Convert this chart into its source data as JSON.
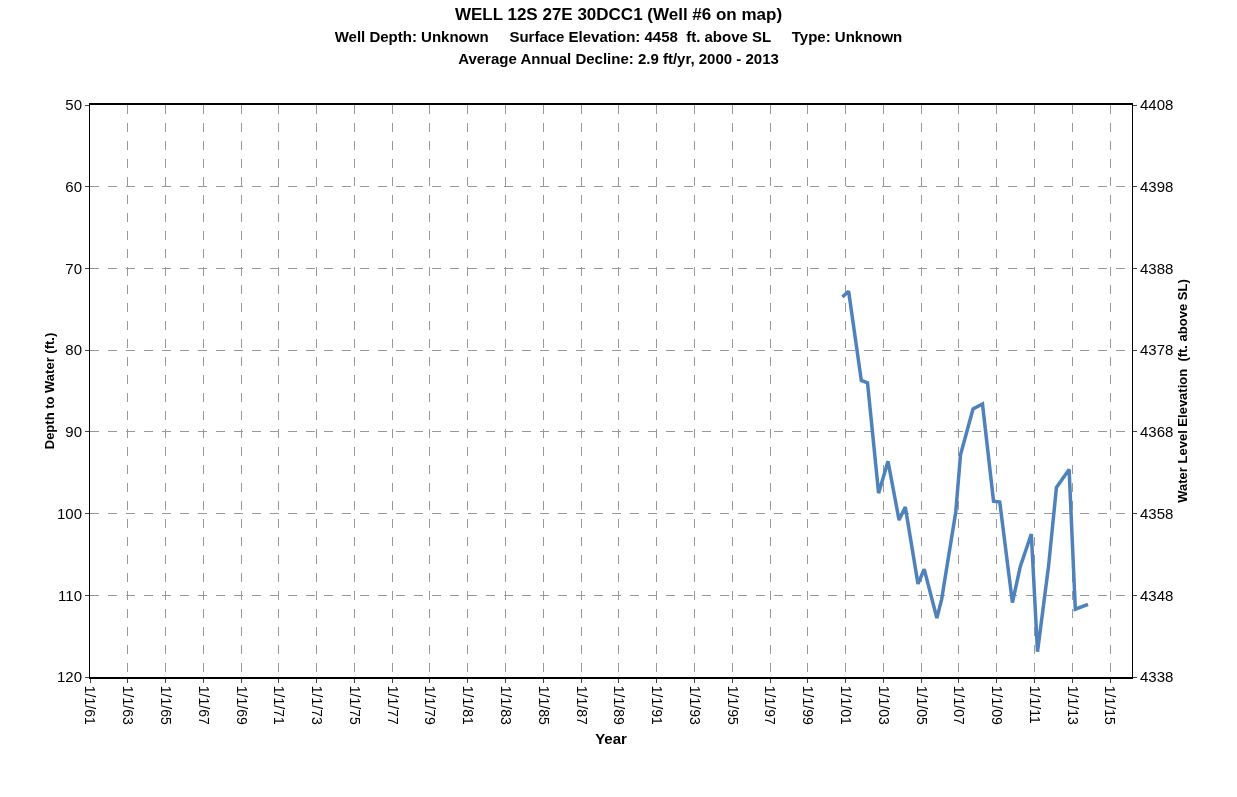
{
  "chart_data": {
    "type": "line",
    "title": "WELL 12S 27E 30DCC1 (Well #6 on map)",
    "subtitle": "Well Depth: Unknown     Surface Elevation: 4458  ft. above SL     Type: Unknown\nAverage Annual Decline: 2.9 ft/yr, 2000 - 2013",
    "xlabel": "Year",
    "ylabel": "Depth to Water (ft.)",
    "y2label": "Water Level Elevation  (ft. above SL)",
    "x": [
      "2000-11",
      "2001-03",
      "2001-11",
      "2002-03",
      "2002-10",
      "2003-04",
      "2003-11",
      "2004-03",
      "2004-11",
      "2005-03",
      "2005-11",
      "2006-02",
      "2006-11",
      "2007-02",
      "2007-10",
      "2008-04",
      "2008-11",
      "2009-03",
      "2009-11",
      "2010-04",
      "2010-11",
      "2011-03",
      "2011-10",
      "2012-03",
      "2012-11",
      "2013-03",
      "2013-11"
    ],
    "series": [
      {
        "color": "#4f81bd",
        "values": [
          73.5,
          72.8,
          83.7,
          84,
          97.5,
          93.6,
          100.8,
          99.2,
          108.6,
          106.8,
          112.8,
          110.5,
          99.8,
          92.8,
          87.2,
          86.6,
          98.5,
          98.6,
          110.9,
          106.5,
          102.5,
          116.9,
          106.4,
          96.8,
          94.6,
          111.7,
          111.1
        ]
      }
    ],
    "xlim": [
      "1961-01-01",
      "2016-03-01"
    ],
    "xticks": [
      {
        "value": "1961-01-01",
        "label": "1/1/61"
      },
      {
        "value": "1963-01-01",
        "label": "1/1/63"
      },
      {
        "value": "1965-01-01",
        "label": "1/1/65"
      },
      {
        "value": "1967-01-01",
        "label": "1/1/67"
      },
      {
        "value": "1969-01-01",
        "label": "1/1/69"
      },
      {
        "value": "1971-01-01",
        "label": "1/1/71"
      },
      {
        "value": "1973-01-01",
        "label": "1/1/73"
      },
      {
        "value": "1975-01-01",
        "label": "1/1/75"
      },
      {
        "value": "1977-01-01",
        "label": "1/1/77"
      },
      {
        "value": "1979-01-01",
        "label": "1/1/79"
      },
      {
        "value": "1981-01-01",
        "label": "1/1/81"
      },
      {
        "value": "1983-01-01",
        "label": "1/1/83"
      },
      {
        "value": "1985-01-01",
        "label": "1/1/85"
      },
      {
        "value": "1987-01-01",
        "label": "1/1/87"
      },
      {
        "value": "1989-01-01",
        "label": "1/1/89"
      },
      {
        "value": "1991-01-01",
        "label": "1/1/91"
      },
      {
        "value": "1993-01-01",
        "label": "1/1/93"
      },
      {
        "value": "1995-01-01",
        "label": "1/1/95"
      },
      {
        "value": "1997-01-01",
        "label": "1/1/97"
      },
      {
        "value": "1999-01-01",
        "label": "1/1/99"
      },
      {
        "value": "2001-01-01",
        "label": "1/1/01"
      },
      {
        "value": "2003-01-01",
        "label": "1/1/03"
      },
      {
        "value": "2005-01-01",
        "label": "1/1/05"
      },
      {
        "value": "2007-01-01",
        "label": "1/1/07"
      },
      {
        "value": "2009-01-01",
        "label": "1/1/09"
      },
      {
        "value": "2011-01-01",
        "label": "1/1/11"
      },
      {
        "value": "2013-01-01",
        "label": "1/1/13"
      },
      {
        "value": "2015-01-01",
        "label": "1/1/15"
      }
    ],
    "ylim": [
      120,
      50
    ],
    "yticks": [
      50,
      60,
      70,
      80,
      90,
      100,
      110,
      120
    ],
    "y2lim": [
      4338,
      4408
    ],
    "y2ticks": [
      4338,
      4348,
      4358,
      4368,
      4378,
      4388,
      4398,
      4408
    ],
    "grid": true,
    "marker": "none",
    "line_style": "solid"
  }
}
